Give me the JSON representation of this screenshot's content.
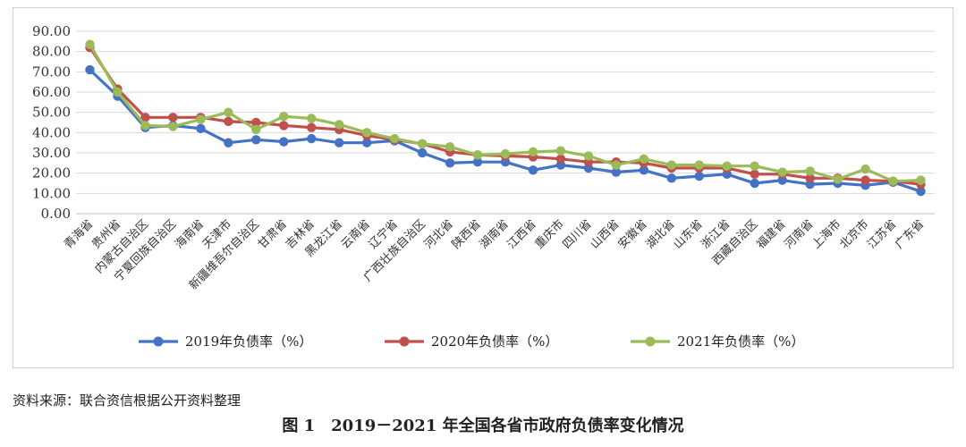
{
  "chart_data": {
    "type": "line",
    "title": "",
    "xlabel": "",
    "ylabel": "",
    "ylim": [
      0,
      90
    ],
    "yticks": [
      "0.00",
      "10.00",
      "20.00",
      "30.00",
      "40.00",
      "50.00",
      "60.00",
      "70.00",
      "80.00",
      "90.00"
    ],
    "grid": true,
    "legend_position": "bottom",
    "categories": [
      "青海省",
      "贵州省",
      "内蒙古自治区",
      "宁夏回族自治区",
      "海南省",
      "天津市",
      "新疆维吾尔自治区",
      "甘肃省",
      "吉林省",
      "黑龙江省",
      "云南省",
      "辽宁省",
      "广西壮族自治区",
      "河北省",
      "陕西省",
      "湖南省",
      "江西省",
      "重庆市",
      "四川省",
      "山西省",
      "安徽省",
      "湖北省",
      "山东省",
      "浙江省",
      "西藏自治区",
      "福建省",
      "河南省",
      "上海市",
      "北京市",
      "江苏省",
      "广东省"
    ],
    "series": [
      {
        "name": "2019年负债率（%）",
        "color": "#4472C4",
        "values": [
          71.0,
          58.0,
          42.5,
          43.5,
          42.0,
          35.0,
          36.5,
          35.5,
          37.0,
          35.0,
          35.0,
          36.0,
          30.0,
          25.0,
          25.5,
          25.5,
          21.5,
          24.0,
          22.5,
          20.5,
          21.5,
          17.5,
          18.5,
          19.5,
          15.0,
          16.5,
          14.5,
          15.0,
          14.0,
          15.5,
          11.0
        ]
      },
      {
        "name": "2020年负债率（%）",
        "color": "#C0504D",
        "values": [
          82.0,
          61.5,
          47.5,
          47.5,
          47.5,
          45.5,
          45.0,
          43.5,
          42.5,
          41.5,
          38.5,
          36.5,
          34.5,
          30.5,
          29.0,
          28.5,
          28.0,
          27.0,
          25.5,
          25.5,
          25.0,
          22.5,
          22.5,
          22.5,
          19.5,
          19.5,
          17.5,
          17.5,
          16.5,
          16.0,
          14.5
        ]
      },
      {
        "name": "2021年负债率（%）",
        "color": "#9BBB59",
        "values": [
          83.5,
          60.0,
          43.5,
          43.0,
          46.5,
          50.0,
          41.5,
          48.0,
          47.0,
          44.0,
          40.0,
          37.0,
          34.5,
          33.0,
          29.0,
          29.5,
          30.5,
          31.0,
          28.5,
          24.0,
          27.0,
          24.0,
          24.0,
          23.5,
          23.5,
          20.5,
          21.0,
          17.0,
          22.0,
          16.0,
          16.5
        ]
      }
    ]
  },
  "source_note": "资料来源：联合资信根据公开资料整理",
  "figure_caption": "图 1　2019－2021 年全国各省市政府负债率变化情况"
}
